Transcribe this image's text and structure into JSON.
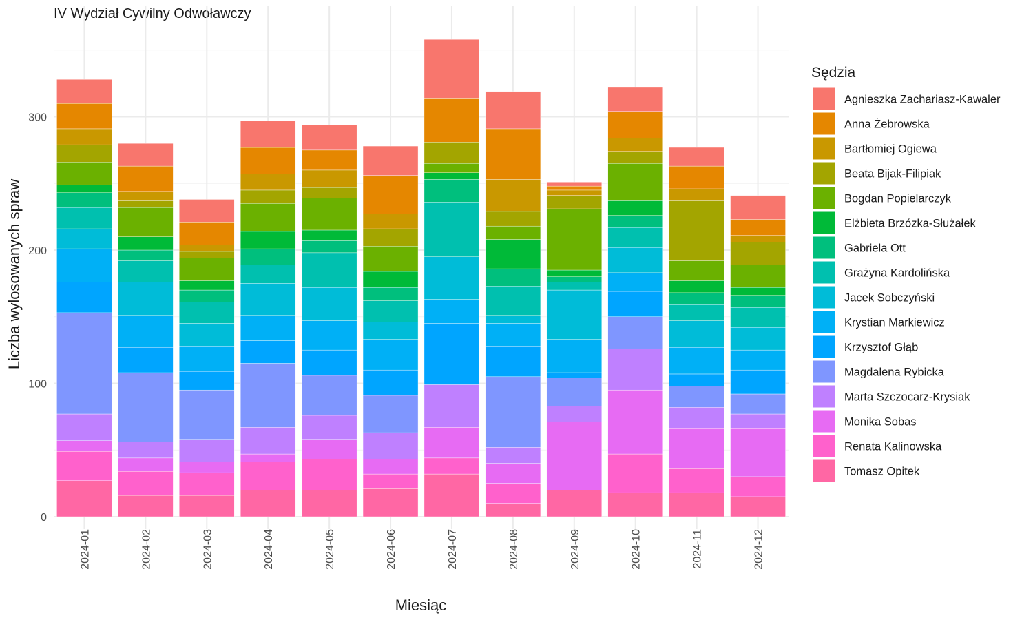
{
  "chart_data": {
    "type": "bar",
    "stacked": true,
    "title": "IV Wydział Cywilny Odwoławczy",
    "xlabel": "Miesiąc",
    "ylabel": "Liczba wylosowanych spraw",
    "ylim": [
      0,
      375
    ],
    "yticks": [
      0,
      100,
      200,
      300
    ],
    "grid": true,
    "legend_title": "Sędzia",
    "legend_position": "right",
    "categories": [
      "2024-01",
      "2024-02",
      "2024-03",
      "2024-04",
      "2024-05",
      "2024-06",
      "2024-07",
      "2024-08",
      "2024-09",
      "2024-10",
      "2024-11",
      "2024-12"
    ],
    "series": [
      {
        "name": "Agnieszka Zachariasz-Kawaler",
        "color": "#F8766D",
        "values": [
          18,
          17,
          17,
          20,
          19,
          22,
          44,
          28,
          3,
          18,
          14,
          18
        ]
      },
      {
        "name": "Anna Żebrowska",
        "color": "#E58700",
        "values": [
          19,
          19,
          17,
          20,
          15,
          29,
          33,
          38,
          3,
          20,
          17,
          12
        ]
      },
      {
        "name": "Bartłomiej Ogiewa",
        "color": "#C99800",
        "values": [
          12,
          7,
          5,
          12,
          13,
          11,
          0,
          24,
          4,
          10,
          9,
          5
        ]
      },
      {
        "name": "Beata Bijak-Filipiak",
        "color": "#A3A500",
        "values": [
          13,
          5,
          5,
          10,
          8,
          13,
          16,
          11,
          10,
          9,
          45,
          17
        ]
      },
      {
        "name": "Bogdan Popielarczyk",
        "color": "#6BB100",
        "values": [
          17,
          22,
          17,
          21,
          24,
          19,
          7,
          10,
          46,
          28,
          15,
          17
        ]
      },
      {
        "name": "Elżbieta Brzózka-Służałek",
        "color": "#00BA38",
        "values": [
          6,
          10,
          7,
          13,
          8,
          12,
          5,
          22,
          5,
          11,
          9,
          6
        ]
      },
      {
        "name": "Gabriela Ott",
        "color": "#00BF7D",
        "values": [
          11,
          8,
          9,
          12,
          9,
          10,
          17,
          13,
          4,
          9,
          9,
          9
        ]
      },
      {
        "name": "Grażyna Kardolińska",
        "color": "#00C0AF",
        "values": [
          16,
          16,
          16,
          14,
          26,
          16,
          41,
          22,
          6,
          15,
          12,
          15
        ]
      },
      {
        "name": "Jacek Sobczyński",
        "color": "#00BCD8",
        "values": [
          15,
          25,
          17,
          24,
          25,
          13,
          32,
          6,
          37,
          19,
          20,
          17
        ]
      },
      {
        "name": "Krystian Markiewicz",
        "color": "#00B0F6",
        "values": [
          25,
          24,
          19,
          19,
          22,
          23,
          18,
          17,
          25,
          14,
          20,
          15
        ]
      },
      {
        "name": "Krzysztof Głąb",
        "color": "#00A5FF",
        "values": [
          23,
          19,
          14,
          17,
          19,
          19,
          46,
          23,
          4,
          19,
          9,
          18
        ]
      },
      {
        "name": "Magdalena Rybicka",
        "color": "#7F96FF",
        "values": [
          76,
          52,
          37,
          48,
          30,
          28,
          0,
          53,
          21,
          24,
          16,
          15
        ]
      },
      {
        "name": "Marta Szczocarz-Krysiak",
        "color": "#BF80FF",
        "values": [
          20,
          12,
          17,
          20,
          18,
          20,
          32,
          12,
          12,
          31,
          16,
          11
        ]
      },
      {
        "name": "Monika Sobas",
        "color": "#E76BF3",
        "values": [
          8,
          10,
          8,
          6,
          15,
          11,
          23,
          15,
          51,
          48,
          30,
          36
        ]
      },
      {
        "name": "Renata Kalinowska",
        "color": "#FF61CC",
        "values": [
          22,
          18,
          17,
          21,
          23,
          11,
          12,
          15,
          0,
          29,
          18,
          15
        ]
      },
      {
        "name": "Tomasz Opitek",
        "color": "#FF67A4",
        "values": [
          27,
          16,
          16,
          20,
          20,
          21,
          32,
          10,
          20,
          18,
          18,
          15
        ]
      }
    ]
  }
}
